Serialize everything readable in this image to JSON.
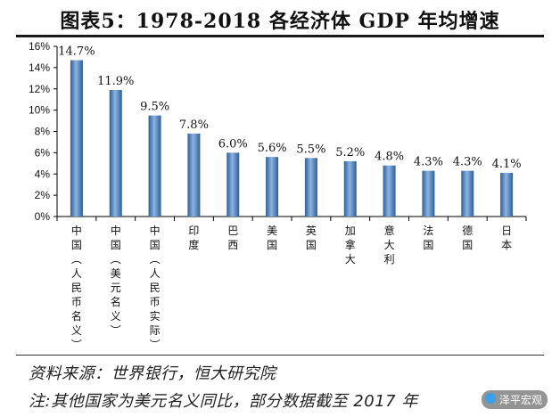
{
  "title": "图表5：1978-2018 各经济体 GDP 年均增速",
  "footer": {
    "source": "资料来源：世界银行，恒大研究院",
    "note": "注:其他国家为美元名义同比，部分数据截至 2017 年"
  },
  "watermark": {
    "text": "泽平宏观",
    "icon": "wechat-logo-icon"
  },
  "colors": {
    "bar": "#4a7fbf",
    "bar_light": "#8db4e2",
    "bar_dark": "#2d5f96",
    "axis": "#000000"
  },
  "chart_data": {
    "type": "bar",
    "categories": [
      "中国(人民币名义)",
      "中国(美元名义)",
      "中国(人民币实际)",
      "印度",
      "巴西",
      "美国",
      "英国",
      "加拿大",
      "意大利",
      "法国",
      "德国",
      "日本"
    ],
    "values": [
      14.7,
      11.9,
      9.5,
      7.8,
      6.0,
      5.6,
      5.5,
      5.2,
      4.8,
      4.3,
      4.3,
      4.1
    ],
    "data_labels": [
      "14.7%",
      "11.9%",
      "9.5%",
      "7.8%",
      "6.0%",
      "5.6%",
      "5.5%",
      "5.2%",
      "4.8%",
      "4.3%",
      "4.3%",
      "4.1%"
    ],
    "yticks": [
      "0%",
      "2%",
      "4%",
      "6%",
      "8%",
      "10%",
      "12%",
      "14%",
      "16%"
    ],
    "ylim": [
      0,
      16
    ],
    "unit": "%",
    "grid": false,
    "legend": "none"
  }
}
